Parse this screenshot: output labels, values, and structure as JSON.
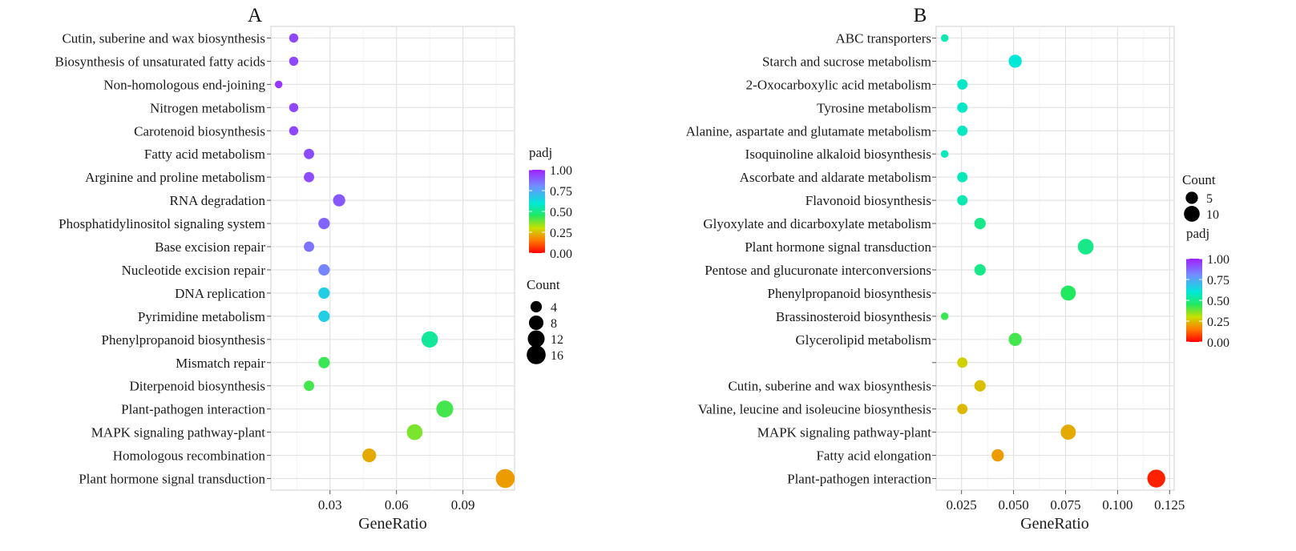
{
  "chart_data": [
    {
      "panel": "A",
      "type": "scatter",
      "xlabel": "GeneRatio",
      "xlim": [
        0.0033,
        0.1133
      ],
      "xticks": [
        0.03,
        0.06,
        0.09
      ],
      "xtick_labels": [
        "0.03",
        "0.06",
        "0.09"
      ],
      "terms": [
        {
          "label": "Cutin, suberine and wax biosynthesis",
          "x": 0.0136,
          "count": 2,
          "padj": 0.93
        },
        {
          "label": "Biosynthesis of unsaturated fatty acids",
          "x": 0.0136,
          "count": 2,
          "padj": 0.93
        },
        {
          "label": "Non-homologous end-joining",
          "x": 0.0068,
          "count": 1,
          "padj": 0.96
        },
        {
          "label": "Nitrogen metabolism",
          "x": 0.0136,
          "count": 2,
          "padj": 0.93
        },
        {
          "label": "Carotenoid biosynthesis",
          "x": 0.0136,
          "count": 2,
          "padj": 0.93
        },
        {
          "label": "Fatty acid metabolism",
          "x": 0.0205,
          "count": 3,
          "padj": 0.92
        },
        {
          "label": "Arginine and proline metabolism",
          "x": 0.0205,
          "count": 3,
          "padj": 0.92
        },
        {
          "label": "RNA degradation",
          "x": 0.0341,
          "count": 5,
          "padj": 0.9
        },
        {
          "label": "Phosphatidylinositol signaling system",
          "x": 0.0273,
          "count": 4,
          "padj": 0.88
        },
        {
          "label": "Base excision repair",
          "x": 0.0205,
          "count": 3,
          "padj": 0.85
        },
        {
          "label": "Nucleotide excision repair",
          "x": 0.0273,
          "count": 4,
          "padj": 0.82
        },
        {
          "label": "DNA replication",
          "x": 0.0273,
          "count": 4,
          "padj": 0.66
        },
        {
          "label": "Pyrimidine metabolism",
          "x": 0.0273,
          "count": 4,
          "padj": 0.66
        },
        {
          "label": "Phenylpropanoid biosynthesis",
          "x": 0.075,
          "count": 11,
          "padj": 0.52
        },
        {
          "label": "Mismatch repair",
          "x": 0.0273,
          "count": 4,
          "padj": 0.43
        },
        {
          "label": "Diterpenoid biosynthesis",
          "x": 0.0205,
          "count": 3,
          "padj": 0.42
        },
        {
          "label": "Plant-pathogen interaction",
          "x": 0.0818,
          "count": 12,
          "padj": 0.42
        },
        {
          "label": "MAPK signaling pathway-plant",
          "x": 0.0682,
          "count": 10,
          "padj": 0.37
        },
        {
          "label": "Homologous recombination",
          "x": 0.0477,
          "count": 7,
          "padj": 0.22
        },
        {
          "label": "Plant hormone signal transduction",
          "x": 0.1091,
          "count": 16,
          "padj": 0.2
        }
      ],
      "color_legend": {
        "title": "padj",
        "labels": [
          "1.00",
          "0.75",
          "0.50",
          "0.25",
          "0.00"
        ],
        "values": [
          1.0,
          0.75,
          0.5,
          0.25,
          0.0
        ]
      },
      "size_legend": {
        "title": "Count",
        "labels": [
          "4",
          "8",
          "12",
          "16"
        ],
        "values": [
          4,
          8,
          12,
          16
        ]
      }
    },
    {
      "panel": "B",
      "type": "scatter",
      "xlabel": "GeneRatio",
      "xlim": [
        0.0128,
        0.1272
      ],
      "xticks": [
        0.025,
        0.05,
        0.075,
        0.1,
        0.125
      ],
      "xtick_labels": [
        "0.025",
        "0.050",
        "0.075",
        "0.100",
        "0.125"
      ],
      "terms": [
        {
          "label": "ABC transporters",
          "x": 0.0169,
          "count": 1,
          "padj": 0.55
        },
        {
          "label": "Starch and sucrose metabolism",
          "x": 0.0508,
          "count": 6,
          "padj": 0.6
        },
        {
          "label": "2-Oxocarboxylic acid metabolism",
          "x": 0.0254,
          "count": 3,
          "padj": 0.58
        },
        {
          "label": "Tyrosine metabolism",
          "x": 0.0254,
          "count": 3,
          "padj": 0.58
        },
        {
          "label": "Alanine, aspartate and glutamate metabolism",
          "x": 0.0254,
          "count": 3,
          "padj": 0.57
        },
        {
          "label": "Isoquinoline alkaloid biosynthesis",
          "x": 0.0169,
          "count": 1,
          "padj": 0.56
        },
        {
          "label": "Ascorbate and aldarate metabolism",
          "x": 0.0254,
          "count": 3,
          "padj": 0.56
        },
        {
          "label": "Flavonoid biosynthesis",
          "x": 0.0254,
          "count": 3,
          "padj": 0.55
        },
        {
          "label": "Glyoxylate and dicarboxylate metabolism",
          "x": 0.0339,
          "count": 4,
          "padj": 0.5
        },
        {
          "label": "Plant hormone signal transduction",
          "x": 0.0847,
          "count": 10,
          "padj": 0.5
        },
        {
          "label": "Pentose and glucuronate interconversions",
          "x": 0.0339,
          "count": 4,
          "padj": 0.5
        },
        {
          "label": "Phenylpropanoid biosynthesis",
          "x": 0.0763,
          "count": 9,
          "padj": 0.45
        },
        {
          "label": "Brassinosteroid biosynthesis",
          "x": 0.0169,
          "count": 1,
          "padj": 0.43
        },
        {
          "label": "Glycerolipid metabolism",
          "x": 0.0508,
          "count": 6,
          "padj": 0.42
        },
        {
          "label": "",
          "x": 0.0254,
          "count": 3,
          "padj": 0.28
        },
        {
          "label": "Cutin, suberine and wax biosynthesis",
          "x": 0.0339,
          "count": 4,
          "padj": 0.25
        },
        {
          "label": "Valine, leucine and isoleucine biosynthesis",
          "x": 0.0254,
          "count": 3,
          "padj": 0.24
        },
        {
          "label": "MAPK signaling pathway-plant",
          "x": 0.0763,
          "count": 9,
          "padj": 0.22
        },
        {
          "label": "Fatty acid elongation",
          "x": 0.0424,
          "count": 5,
          "padj": 0.2
        },
        {
          "label": "Plant-pathogen interaction",
          "x": 0.1186,
          "count": 14,
          "padj": 0.04
        }
      ],
      "size_legend": {
        "title": "Count",
        "labels": [
          "5",
          "10"
        ],
        "values": [
          5,
          10
        ]
      },
      "color_legend": {
        "title": "padj",
        "labels": [
          "1.00",
          "0.75",
          "0.50",
          "0.25",
          "0.00"
        ],
        "values": [
          1.0,
          0.75,
          0.5,
          0.25,
          0.0
        ]
      }
    }
  ]
}
